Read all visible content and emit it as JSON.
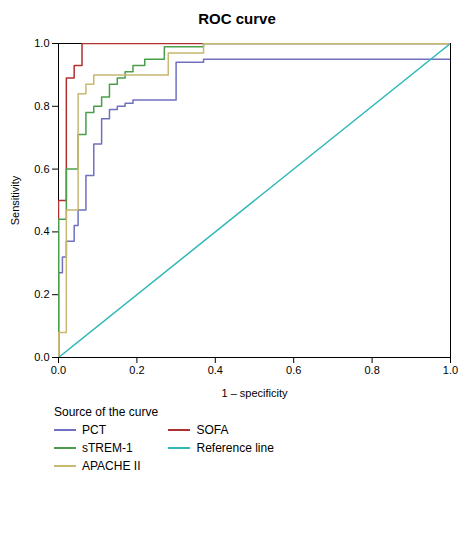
{
  "chart_data": {
    "type": "line",
    "title": "ROC curve",
    "xlabel": "1 – specificity",
    "ylabel": "Sensitivity",
    "legend_title": "Source of the curve",
    "legend": "bottom",
    "grid": false,
    "xlim": [
      0.0,
      1.0
    ],
    "ylim": [
      0.0,
      1.0
    ],
    "xticks": [
      {
        "value": 0.0,
        "label": "0.0"
      },
      0.2,
      0.4,
      0.6,
      0.8,
      {
        "value": 1.0,
        "label": "1.0"
      }
    ],
    "yticks": [
      {
        "value": 0.0,
        "label": "0.0"
      },
      0.2,
      0.4,
      0.6,
      0.8,
      {
        "value": 1.0,
        "label": "1.0"
      }
    ],
    "series": [
      {
        "name": "PCT",
        "color": "#7070c0",
        "x": [
          0.0,
          0.0,
          0.01,
          0.01,
          0.02,
          0.02,
          0.04,
          0.04,
          0.05,
          0.05,
          0.07,
          0.07,
          0.09,
          0.09,
          0.11,
          0.11,
          0.13,
          0.13,
          0.15,
          0.15,
          0.17,
          0.17,
          0.19,
          0.19,
          0.3,
          0.3,
          0.37,
          0.37,
          1.0
        ],
        "values": [
          0.0,
          0.27,
          0.27,
          0.32,
          0.32,
          0.37,
          0.37,
          0.42,
          0.42,
          0.47,
          0.47,
          0.58,
          0.58,
          0.68,
          0.68,
          0.76,
          0.76,
          0.79,
          0.79,
          0.8,
          0.8,
          0.81,
          0.81,
          0.82,
          0.82,
          0.94,
          0.94,
          0.95,
          0.95
        ]
      },
      {
        "name": "SOFA",
        "color": "#b03030",
        "x": [
          0.0,
          0.0,
          0.02,
          0.02,
          0.04,
          0.04,
          0.06,
          0.06,
          1.0
        ],
        "values": [
          0.0,
          0.5,
          0.5,
          0.89,
          0.89,
          0.93,
          0.93,
          1.0,
          1.0
        ]
      },
      {
        "name": "sTREM-1",
        "color": "#4a9e4a",
        "x": [
          0.0,
          0.0,
          0.02,
          0.02,
          0.05,
          0.05,
          0.07,
          0.07,
          0.09,
          0.09,
          0.11,
          0.11,
          0.13,
          0.13,
          0.15,
          0.15,
          0.17,
          0.17,
          0.19,
          0.19,
          0.22,
          0.22,
          0.27,
          0.27,
          0.37,
          0.37,
          0.8,
          0.8,
          1.0
        ],
        "values": [
          0.0,
          0.44,
          0.44,
          0.6,
          0.6,
          0.71,
          0.71,
          0.78,
          0.78,
          0.8,
          0.8,
          0.83,
          0.83,
          0.87,
          0.87,
          0.89,
          0.89,
          0.91,
          0.91,
          0.93,
          0.93,
          0.95,
          0.95,
          0.99,
          0.99,
          1.0,
          1.0,
          1.0,
          1.0
        ]
      },
      {
        "name": "Reference line",
        "color": "#30b8b8",
        "x": [
          0.0,
          1.0
        ],
        "values": [
          0.0,
          1.0
        ]
      },
      {
        "name": "APACHE II",
        "color": "#c8b870",
        "x": [
          0.0,
          0.0,
          0.02,
          0.02,
          0.05,
          0.05,
          0.07,
          0.07,
          0.09,
          0.09,
          0.28,
          0.28,
          0.37,
          0.37,
          1.0
        ],
        "values": [
          0.0,
          0.08,
          0.08,
          0.47,
          0.47,
          0.84,
          0.84,
          0.87,
          0.87,
          0.9,
          0.9,
          0.97,
          0.97,
          1.0,
          1.0
        ]
      }
    ]
  }
}
